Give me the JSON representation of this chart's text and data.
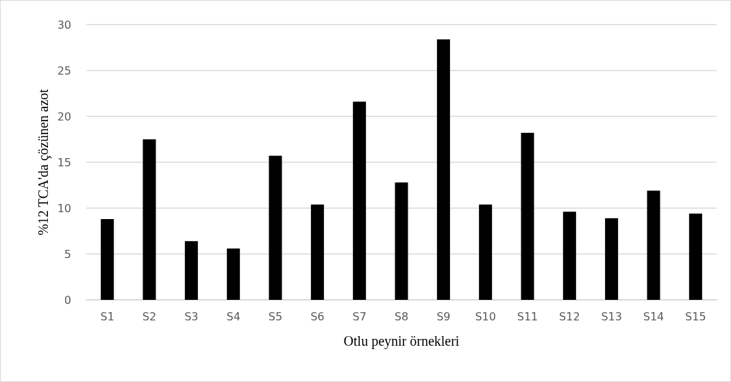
{
  "chart_data": {
    "type": "bar",
    "xlabel": "Otlu peynir örnekleri",
    "ylabel": "%12 TCA'da çözünen azot",
    "categories": [
      "S1",
      "S2",
      "S3",
      "S4",
      "S5",
      "S6",
      "S7",
      "S8",
      "S9",
      "S10",
      "S11",
      "S12",
      "S13",
      "S14",
      "S15"
    ],
    "values": [
      8.8,
      17.5,
      6.4,
      5.6,
      15.7,
      10.4,
      21.6,
      12.8,
      28.4,
      10.4,
      18.2,
      9.6,
      8.9,
      11.9,
      9.4
    ],
    "color": "#000000",
    "ylim": [
      0,
      30
    ],
    "yticks": [
      0,
      5,
      10,
      15,
      20,
      25,
      30
    ],
    "grid": "y"
  }
}
